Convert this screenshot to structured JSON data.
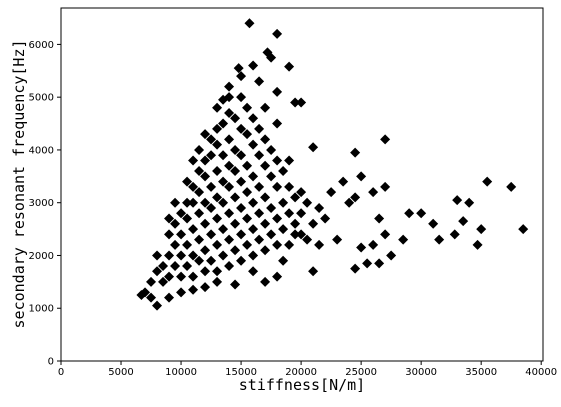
{
  "chart_data": {
    "type": "scatter",
    "x_label": "stiffness[N/m]",
    "y_label": "secondary resonant frequency[Hz]",
    "color": "#000000",
    "marker": "diamond",
    "xlim": [
      0,
      40150
    ],
    "ylim": [
      0,
      6690
    ],
    "xticks": [
      0,
      5000,
      10000,
      15000,
      20000,
      25000,
      30000,
      35000,
      40000
    ],
    "yticks": [
      0,
      1000,
      2000,
      3000,
      4000,
      5000,
      6000
    ],
    "grid": false,
    "x": [
      15700,
      18000,
      17200,
      17500,
      16000,
      19000,
      14800,
      16500,
      15000,
      14000,
      18000,
      19500,
      20000,
      13500,
      21000,
      27000,
      24500,
      35500,
      37500,
      38500,
      33000,
      34000,
      33500,
      35000,
      34700,
      32800,
      31500,
      31000,
      30000,
      29000,
      28500,
      27500,
      27000,
      26500,
      25500,
      24500,
      26000,
      25000,
      27000,
      26000,
      25000,
      24000,
      23500,
      22500,
      22000,
      21500,
      21000,
      23000,
      26500,
      24500,
      20000,
      19500,
      18500,
      18000,
      17000,
      16000,
      14500,
      8000,
      7500,
      6700,
      7000,
      9000,
      10000,
      11000,
      12000,
      13000,
      8500,
      8500,
      9000,
      9000,
      9500,
      9500,
      9500,
      10000,
      10000,
      10000,
      10000,
      10500,
      10500,
      10500,
      10500,
      11000,
      11000,
      11000,
      11000,
      11000,
      11500,
      11500,
      11500,
      11500,
      11500,
      12000,
      12000,
      12000,
      12000,
      12000,
      12000,
      12500,
      12500,
      12500,
      12500,
      12500,
      12500,
      13000,
      13000,
      13000,
      13000,
      13000,
      13000,
      13000,
      13500,
      13500,
      13500,
      13500,
      13500,
      13500,
      14000,
      14000,
      14000,
      14000,
      14000,
      14000,
      14000,
      14500,
      14500,
      14500,
      14500,
      14500,
      14500,
      15000,
      15000,
      15000,
      15000,
      15000,
      15000,
      15000,
      15500,
      15500,
      15500,
      15500,
      15500,
      15500,
      16000,
      16000,
      16000,
      16000,
      16000,
      16000,
      16500,
      16500,
      16500,
      16500,
      16500,
      17000,
      17000,
      17000,
      17000,
      17000,
      17000,
      17500,
      17500,
      17500,
      17500,
      18000,
      18000,
      18000,
      18000,
      18000,
      18500,
      18500,
      18500,
      19000,
      19000,
      19000,
      19000,
      19500,
      19500,
      20000,
      20000,
      20500,
      20500,
      21000,
      21500,
      9000,
      9500,
      10500,
      11000,
      11500,
      12000,
      13000,
      14000,
      8000,
      7500,
      8000,
      9000
    ],
    "values": [
      6400,
      6200,
      5850,
      5750,
      5600,
      5580,
      5550,
      5300,
      5400,
      5200,
      5100,
      4900,
      4900,
      4950,
      4050,
      4200,
      3950,
      3400,
      3300,
      2500,
      3050,
      3000,
      2650,
      2500,
      2200,
      2400,
      2300,
      2600,
      2800,
      2800,
      2300,
      2000,
      2400,
      1850,
      1850,
      1750,
      2200,
      2150,
      3300,
      3200,
      3500,
      3000,
      3400,
      3200,
      2700,
      2200,
      1700,
      2300,
      2700,
      3100,
      3200,
      2400,
      1900,
      1600,
      1500,
      1700,
      1450,
      1050,
      1200,
      1250,
      1300,
      1200,
      1300,
      1350,
      1400,
      1500,
      1500,
      1800,
      2000,
      1600,
      2200,
      1800,
      2600,
      2000,
      2400,
      2800,
      1600,
      2200,
      2700,
      3000,
      1800,
      2000,
      2500,
      3000,
      3300,
      1600,
      2300,
      2800,
      3200,
      3600,
      1900,
      2100,
      2600,
      3000,
      3500,
      3800,
      1700,
      2400,
      2900,
      3300,
      3900,
      4200,
      1900,
      2200,
      2700,
      3100,
      3600,
      4100,
      4400,
      1700,
      2500,
      3000,
      3400,
      3900,
      4500,
      2000,
      2300,
      2800,
      3300,
      3700,
      4200,
      4700,
      1800,
      2100,
      2600,
      3100,
      3600,
      4000,
      4600,
      2400,
      2900,
      3400,
      3900,
      4400,
      5000,
      1900,
      2200,
      2700,
      3200,
      3700,
      4300,
      4800,
      2500,
      3000,
      3500,
      4100,
      4600,
      2000,
      2300,
      2800,
      3300,
      3900,
      4400,
      2100,
      2600,
      3100,
      3700,
      4200,
      4800,
      2400,
      2900,
      3500,
      4000,
      2200,
      2700,
      3300,
      3800,
      4500,
      2500,
      3000,
      3600,
      2200,
      2800,
      3300,
      3800,
      2600,
      3100,
      2400,
      2800,
      2300,
      3000,
      2600,
      2900,
      2400,
      3000,
      3400,
      3800,
      4000,
      4300,
      4800,
      5000,
      1700,
      1500,
      2000,
      2700
    ]
  }
}
